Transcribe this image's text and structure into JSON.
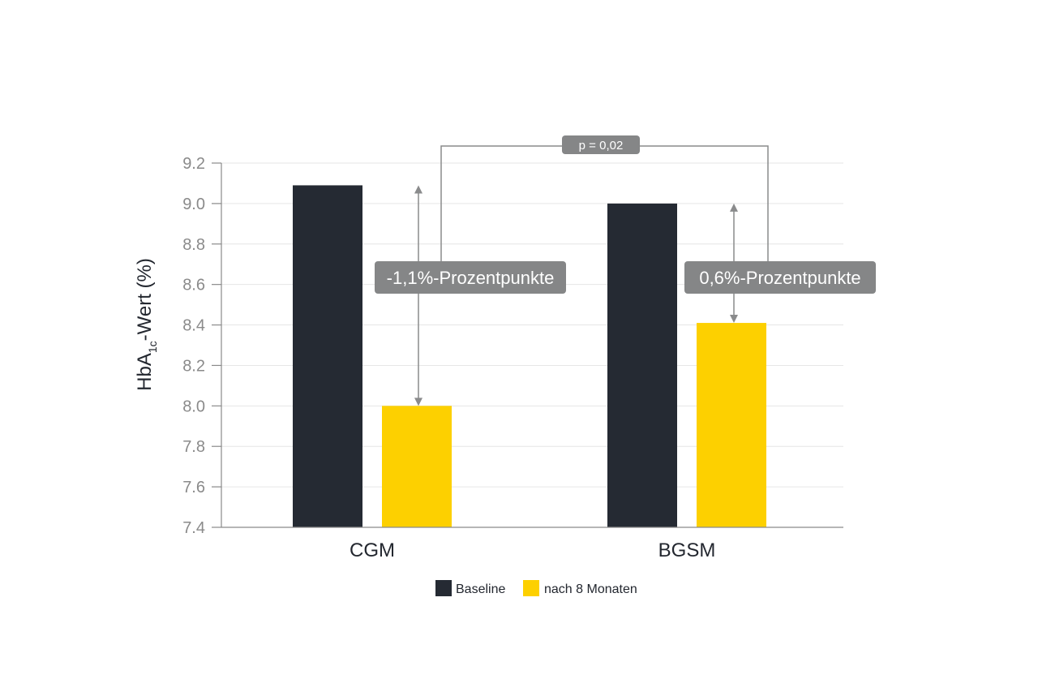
{
  "chart_data": {
    "type": "bar",
    "categories": [
      "CGM",
      "BGSM"
    ],
    "series": [
      {
        "name": "Baseline",
        "values": [
          9.09,
          9.0
        ],
        "color": "#252a33"
      },
      {
        "name": "nach 8 Monaten",
        "values": [
          8.0,
          8.41
        ],
        "color": "#fdd000"
      }
    ],
    "ylabel_main": "HbA",
    "ylabel_sub": "1c",
    "ylabel_rest": "-Wert (%)",
    "ylim": [
      7.4,
      9.2
    ],
    "yticks": [
      "7.4",
      "7.6",
      "7.8",
      "8.0",
      "8.2",
      "8.4",
      "8.6",
      "8.8",
      "9.0",
      "9.2"
    ],
    "grid": true,
    "legend_position": "bottom",
    "annotations": [
      {
        "category": "CGM",
        "label": "-1,1%-Prozentpunkte",
        "from": 9.09,
        "to": 8.0
      },
      {
        "category": "BGSM",
        "label": "0,6%-Prozentpunkte",
        "from": 9.0,
        "to": 8.41
      }
    ],
    "significance_label": "p = 0,02",
    "axis_color": "#8a8a8a",
    "grid_color": "#e6e6e6",
    "annotation_box_color": "#858687"
  }
}
